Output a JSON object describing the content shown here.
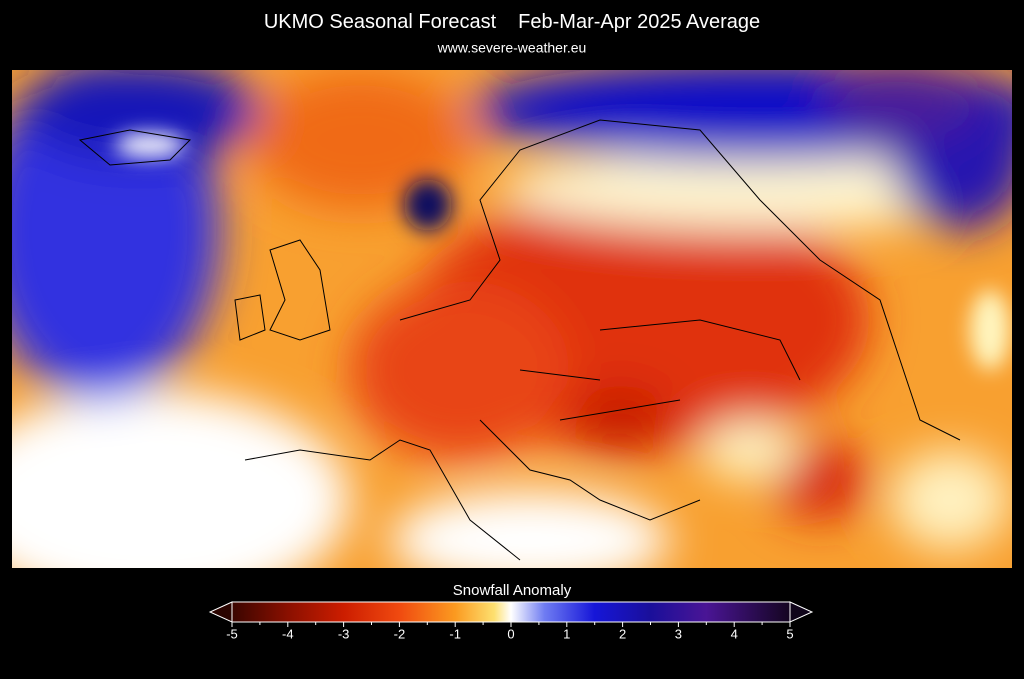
{
  "header": {
    "title": "UKMO Seasonal Forecast",
    "period": "Feb-Mar-Apr 2025 Average",
    "subtitle": "www.severe-weather.eu"
  },
  "colorbar": {
    "label": "Snowfall Anomaly",
    "lim": [
      -5,
      5
    ],
    "ticks": [
      -5,
      -4,
      -3,
      -2,
      -1,
      0,
      1,
      2,
      3,
      4,
      5
    ]
  }
}
